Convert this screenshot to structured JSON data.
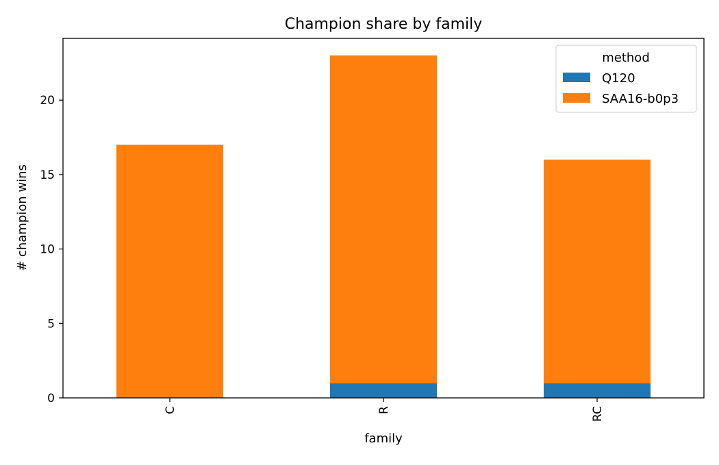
{
  "chart_data": {
    "type": "bar",
    "stacked": true,
    "title": "Champion share by family",
    "xlabel": "family",
    "ylabel": "# champion wins",
    "categories": [
      "C",
      "R",
      "RC"
    ],
    "series": [
      {
        "name": "Q120",
        "values": [
          0,
          1,
          1
        ],
        "color": "#1f77b4"
      },
      {
        "name": "SAA16-b0p3",
        "values": [
          17,
          22,
          15
        ],
        "color": "#ff7f0e"
      }
    ],
    "ylim": [
      0,
      24.15
    ],
    "yticks": [
      0,
      5,
      10,
      15,
      20
    ],
    "grid": false,
    "legend": {
      "title": "method",
      "position": "top-right"
    }
  }
}
